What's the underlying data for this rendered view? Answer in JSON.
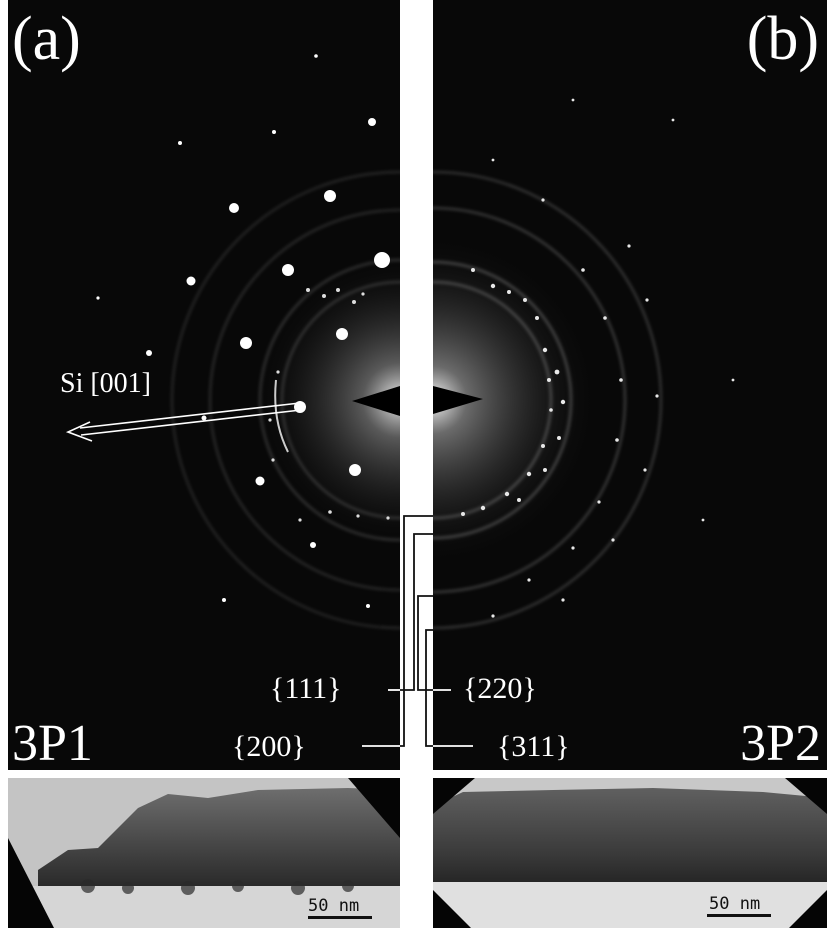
{
  "panels": {
    "a": {
      "letter": "(a)",
      "sample": "3P1",
      "arrow_label": "Si [001]"
    },
    "b": {
      "letter": "(b)",
      "sample": "3P2"
    }
  },
  "ring_labels": {
    "r111": "{111}",
    "r200": "{200}",
    "r220": "{220}",
    "r311": "{311}"
  },
  "scalebars": {
    "a": "50 nm",
    "b": "50 nm"
  },
  "colors": {
    "background": "#080808",
    "spot": "#ffffff",
    "annotation": "#ffffff"
  }
}
